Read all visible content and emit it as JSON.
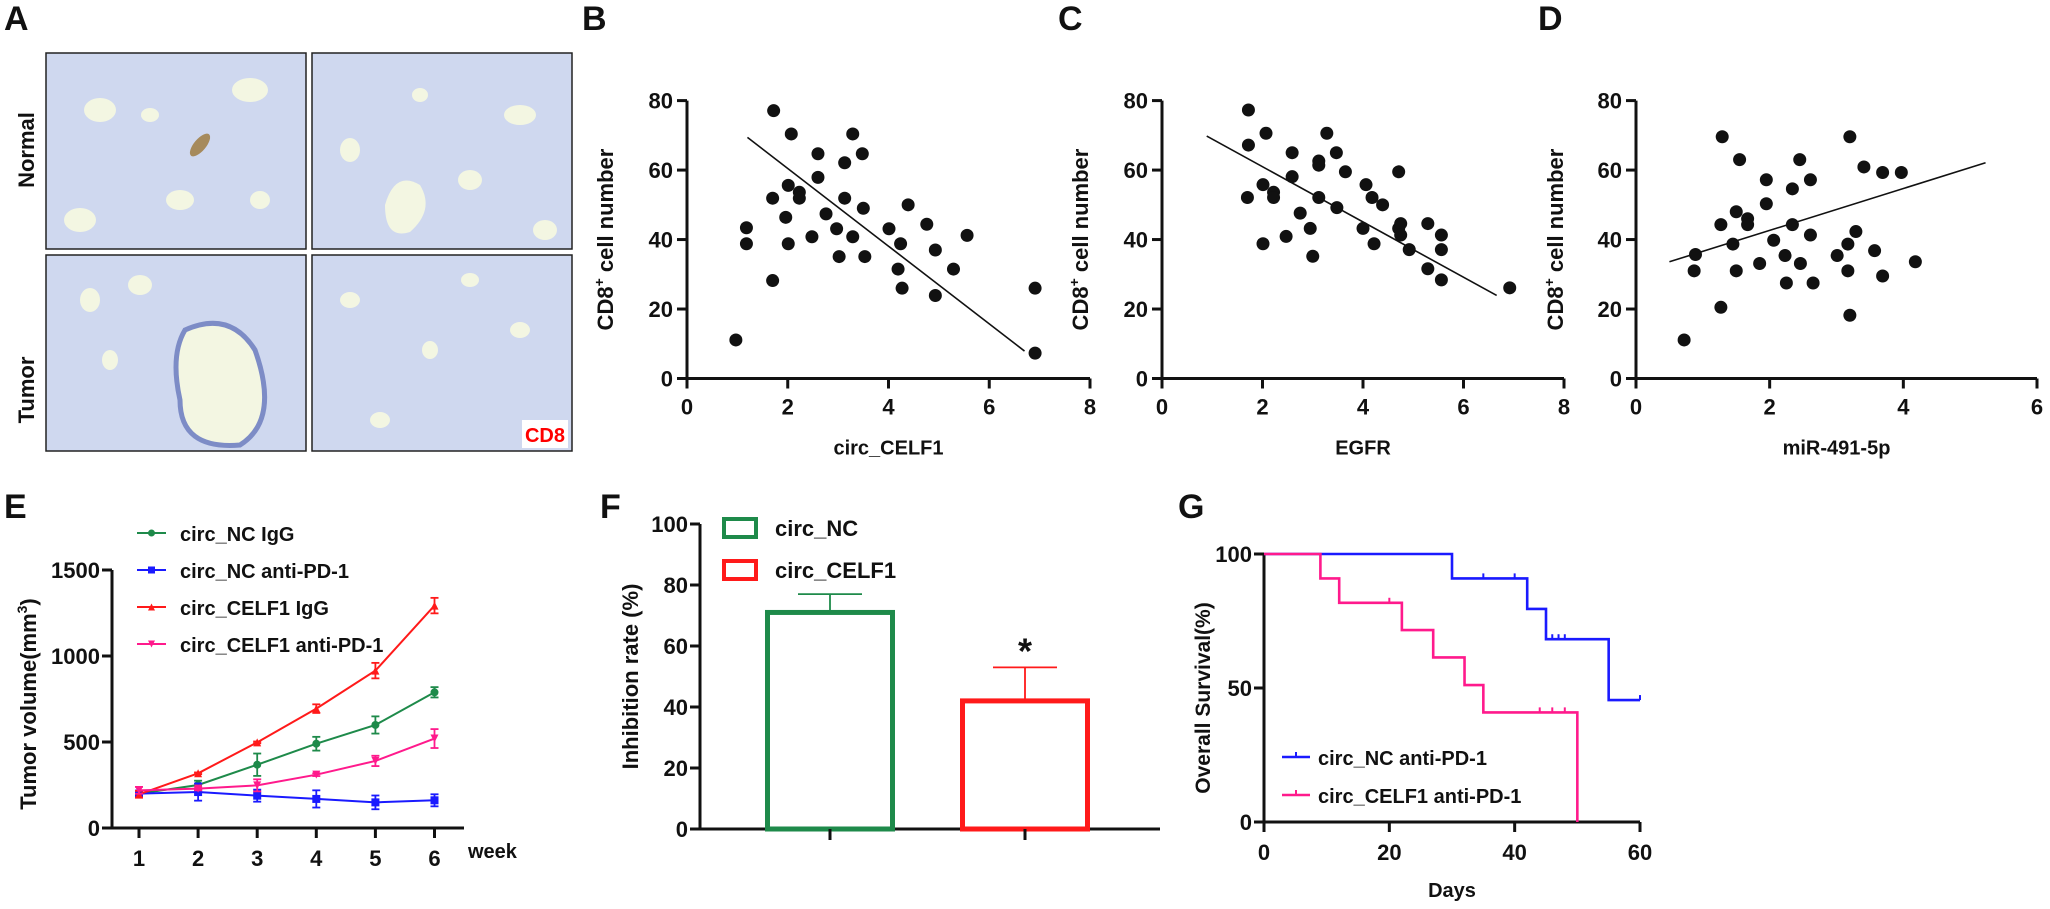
{
  "figure": {
    "panels": [
      "A",
      "B",
      "C",
      "D",
      "E",
      "F",
      "G"
    ]
  },
  "panel_a": {
    "letter": "A",
    "row_labels": [
      "Normal",
      "Tumor"
    ],
    "stain_label": "CD8",
    "stain_label_color": "#ff0000",
    "image_description": "IHC lung tissue sections, 2x2 grid (Normal top, Tumor bottom)"
  },
  "chart_data": [
    {
      "panel": "B",
      "type": "scatter",
      "title": "",
      "xlabel": "circ_CELF1",
      "ylabel": "CD8+ cell number",
      "ylabel_main": "CD8",
      "ylabel_sup": "+",
      "ylabel_rest": " cell number",
      "xlim": [
        0,
        8
      ],
      "ylim": [
        0,
        80
      ],
      "xticks": [
        0,
        2,
        4,
        6,
        8
      ],
      "yticks": [
        0,
        20,
        40,
        60,
        80
      ],
      "points": [
        [
          0.97,
          11.1
        ],
        [
          1.18,
          43.4
        ],
        [
          1.18,
          38.8
        ],
        [
          1.7,
          51.9
        ],
        [
          1.72,
          77.1
        ],
        [
          1.7,
          28.2
        ],
        [
          1.96,
          46.4
        ],
        [
          2.01,
          55.6
        ],
        [
          2.01,
          38.8
        ],
        [
          2.07,
          70.4
        ],
        [
          2.23,
          53.6
        ],
        [
          2.23,
          51.9
        ],
        [
          2.48,
          40.8
        ],
        [
          2.6,
          64.7
        ],
        [
          2.6,
          57.9
        ],
        [
          2.76,
          47.4
        ],
        [
          2.97,
          43.1
        ],
        [
          3.02,
          35.1
        ],
        [
          3.13,
          62.1
        ],
        [
          3.13,
          51.9
        ],
        [
          3.29,
          70.4
        ],
        [
          3.29,
          40.8
        ],
        [
          3.48,
          64.7
        ],
        [
          3.5,
          49.0
        ],
        [
          3.53,
          35.1
        ],
        [
          4.01,
          43.1
        ],
        [
          4.19,
          31.5
        ],
        [
          4.24,
          38.8
        ],
        [
          4.27,
          26.0
        ],
        [
          4.39,
          50.0
        ],
        [
          4.76,
          44.4
        ],
        [
          4.93,
          37.0
        ],
        [
          4.93,
          23.9
        ],
        [
          5.29,
          31.5
        ],
        [
          5.56,
          41.2
        ],
        [
          6.91,
          26.0
        ],
        [
          6.91,
          7.3
        ]
      ],
      "fit_line": [
        [
          1.2,
          69.4
        ],
        [
          6.7,
          7.9
        ]
      ],
      "grid": false
    },
    {
      "panel": "C",
      "type": "scatter",
      "title": "",
      "xlabel": "EGFR",
      "ylabel": "CD8+ cell number",
      "ylabel_main": "CD8",
      "ylabel_sup": "+",
      "ylabel_rest": " cell number",
      "xlim": [
        0,
        8
      ],
      "ylim": [
        0,
        80
      ],
      "xticks": [
        0,
        2,
        4,
        6,
        8
      ],
      "yticks": [
        0,
        20,
        40,
        60,
        80
      ],
      "points": [
        [
          1.72,
          77.3
        ],
        [
          1.72,
          67.2
        ],
        [
          1.7,
          52.1
        ],
        [
          2.01,
          38.8
        ],
        [
          2.01,
          55.8
        ],
        [
          2.07,
          70.6
        ],
        [
          2.22,
          53.6
        ],
        [
          2.22,
          52.1
        ],
        [
          2.47,
          40.9
        ],
        [
          2.59,
          65.0
        ],
        [
          2.59,
          58.1
        ],
        [
          2.75,
          47.6
        ],
        [
          2.95,
          43.2
        ],
        [
          3.0,
          35.2
        ],
        [
          3.12,
          62.6
        ],
        [
          3.12,
          61.4
        ],
        [
          3.12,
          52.1
        ],
        [
          3.28,
          70.6
        ],
        [
          3.47,
          65.0
        ],
        [
          3.48,
          49.2
        ],
        [
          3.65,
          59.5
        ],
        [
          4.0,
          43.2
        ],
        [
          4.06,
          55.8
        ],
        [
          4.18,
          52.1
        ],
        [
          4.22,
          38.8
        ],
        [
          4.39,
          50.0
        ],
        [
          4.71,
          59.5
        ],
        [
          4.71,
          43.2
        ],
        [
          4.75,
          44.6
        ],
        [
          4.75,
          41.3
        ],
        [
          4.92,
          37.1
        ],
        [
          5.29,
          44.6
        ],
        [
          5.29,
          31.6
        ],
        [
          5.56,
          41.3
        ],
        [
          5.56,
          37.1
        ],
        [
          5.56,
          28.4
        ],
        [
          6.92,
          26.1
        ]
      ],
      "fit_line": [
        [
          0.89,
          69.8
        ],
        [
          6.66,
          23.9
        ]
      ],
      "grid": false
    },
    {
      "panel": "D",
      "type": "scatter",
      "title": "",
      "xlabel": "miR-491-5p",
      "ylabel": "CD8+ cell number",
      "ylabel_main": "CD8",
      "ylabel_sup": "+",
      "ylabel_rest": " cell number",
      "xlim": [
        0,
        6
      ],
      "ylim": [
        0,
        80
      ],
      "xticks": [
        0,
        2,
        4,
        6
      ],
      "yticks": [
        0,
        20,
        40,
        60,
        80
      ],
      "points": [
        [
          0.72,
          11.1
        ],
        [
          0.87,
          31.0
        ],
        [
          0.89,
          35.7
        ],
        [
          1.27,
          20.5
        ],
        [
          1.27,
          44.3
        ],
        [
          1.29,
          69.6
        ],
        [
          1.45,
          38.7
        ],
        [
          1.5,
          48.0
        ],
        [
          1.5,
          31.0
        ],
        [
          1.55,
          63.0
        ],
        [
          1.67,
          46.0
        ],
        [
          1.67,
          44.3
        ],
        [
          1.85,
          33.1
        ],
        [
          1.95,
          57.2
        ],
        [
          1.95,
          50.3
        ],
        [
          2.06,
          39.8
        ],
        [
          2.23,
          35.4
        ],
        [
          2.25,
          27.5
        ],
        [
          2.34,
          54.6
        ],
        [
          2.34,
          44.3
        ],
        [
          2.45,
          63.0
        ],
        [
          2.46,
          33.1
        ],
        [
          2.61,
          57.2
        ],
        [
          2.61,
          41.3
        ],
        [
          2.65,
          27.5
        ],
        [
          3.01,
          35.4
        ],
        [
          3.17,
          38.7
        ],
        [
          3.17,
          31.0
        ],
        [
          3.2,
          69.6
        ],
        [
          3.2,
          18.2
        ],
        [
          3.29,
          42.3
        ],
        [
          3.41,
          60.9
        ],
        [
          3.57,
          36.8
        ],
        [
          3.69,
          59.3
        ],
        [
          3.69,
          29.5
        ],
        [
          3.97,
          59.3
        ],
        [
          4.18,
          33.6
        ]
      ],
      "fit_line": [
        [
          0.5,
          33.6
        ],
        [
          5.23,
          62.1
        ]
      ],
      "grid": false
    },
    {
      "panel": "E",
      "type": "line",
      "title": "",
      "xlabel": "week",
      "ylabel": "Tumor volume(mm3)",
      "ylabel_main": "Tumor volume(mm",
      "ylabel_sup": "3",
      "ylabel_rest": ")",
      "x": [
        1,
        2,
        3,
        4,
        5,
        6
      ],
      "xlim": [
        0.5,
        6.5
      ],
      "ylim": [
        0,
        1500
      ],
      "yticks": [
        0,
        500,
        1000,
        1500
      ],
      "legend_position": "top-left",
      "series": [
        {
          "name": "circ_NC IgG",
          "color": "#1e8a4a",
          "marker": "circle",
          "values": [
            200,
            250,
            368,
            490,
            599,
            789
          ],
          "errors": [
            15,
            25,
            65,
            40,
            50,
            30
          ]
        },
        {
          "name": "circ_NC anti-PD-1",
          "color": "#1a1aff",
          "marker": "square",
          "values": [
            200,
            209,
            188,
            169,
            149,
            161
          ],
          "errors": [
            15,
            50,
            35,
            50,
            40,
            35
          ]
        },
        {
          "name": "circ_CELF1 IgG",
          "color": "#ff1a1a",
          "marker": "triangle-up",
          "values": [
            196,
            318,
            498,
            694,
            915,
            1293
          ],
          "errors": [
            20,
            5,
            5,
            25,
            45,
            45
          ]
        },
        {
          "name": "circ_CELF1 anti-PD-1",
          "color": "#ff1a8c",
          "marker": "triangle-down",
          "values": [
            219,
            229,
            248,
            310,
            390,
            520
          ],
          "errors": [
            20,
            10,
            35,
            8,
            30,
            55
          ]
        }
      ],
      "grid": false
    },
    {
      "panel": "F",
      "type": "bar",
      "title": "",
      "xlabel": "",
      "ylabel": "Inhibition rate (%)",
      "categories": [
        "circ_NC",
        "circ_CELF1"
      ],
      "values": [
        71,
        42
      ],
      "errors": [
        6,
        11
      ],
      "colors": [
        "#1e8a4a",
        "#ff1a1a"
      ],
      "significance": [
        "",
        "*"
      ],
      "ylim": [
        0,
        100
      ],
      "yticks": [
        0,
        20,
        40,
        60,
        80,
        100
      ],
      "legend_position": "top-left",
      "grid": false
    },
    {
      "panel": "G",
      "type": "line",
      "subtype": "kaplan-meier",
      "title": "",
      "xlabel": "Days",
      "ylabel": "Overall Survival(%)",
      "xlim": [
        0,
        60
      ],
      "ylim": [
        0,
        100
      ],
      "xticks": [
        0,
        20,
        40,
        60
      ],
      "yticks": [
        0,
        50,
        100
      ],
      "legend_position": "bottom-left",
      "series": [
        {
          "name": "circ_NC anti-PD-1",
          "color": "#1a1aff",
          "steps": [
            [
              0,
              100
            ],
            [
              30,
              90.9
            ],
            [
              42,
              79.5
            ],
            [
              45,
              68.2
            ],
            [
              55,
              45.5
            ]
          ],
          "end": 60,
          "censored": [
            [
              35,
              90.9
            ],
            [
              40,
              90.9
            ],
            [
              46,
              68.2
            ],
            [
              47,
              68.2
            ],
            [
              48,
              68.2
            ],
            [
              60,
              45.5
            ]
          ]
        },
        {
          "name": "circ_CELF1 anti-PD-1",
          "color": "#ff1a8c",
          "steps": [
            [
              0,
              100
            ],
            [
              9,
              90.9
            ],
            [
              12,
              81.8
            ],
            [
              22,
              71.6
            ],
            [
              27,
              61.4
            ],
            [
              32,
              51.1
            ],
            [
              35,
              40.9
            ],
            [
              50,
              0
            ]
          ],
          "end": 50,
          "censored": [
            [
              20,
              81.8
            ],
            [
              44,
              40.9
            ],
            [
              46,
              40.9
            ],
            [
              48,
              40.9
            ]
          ]
        }
      ],
      "grid": false
    }
  ]
}
